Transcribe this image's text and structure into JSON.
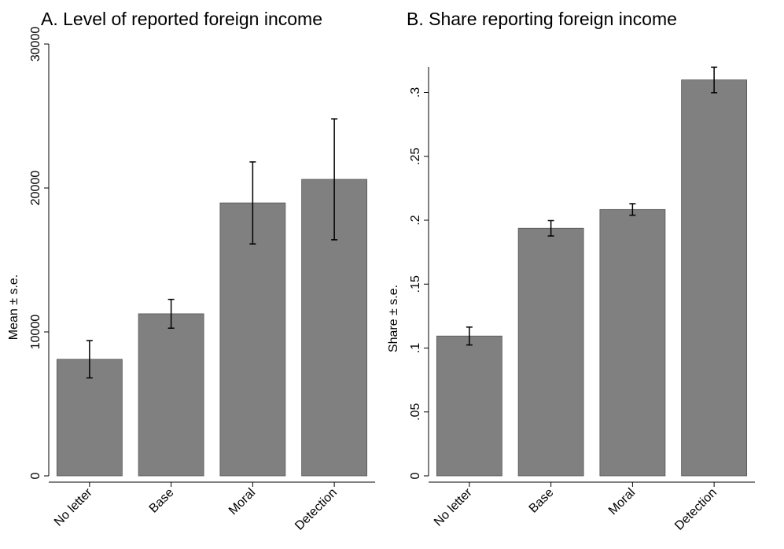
{
  "chart_data": [
    {
      "type": "bar",
      "title": "A. Level of reported foreign income",
      "ylabel": "Mean ± s.e.",
      "categories": [
        "No letter",
        "Base",
        "Moral",
        "Detection"
      ],
      "values": [
        8100,
        11260,
        18960,
        20600
      ],
      "errors": [
        1300,
        1000,
        2850,
        4200
      ],
      "color": "#808080",
      "ylim": [
        0,
        30000
      ],
      "yticks": [
        0,
        10000,
        20000,
        30000
      ]
    },
    {
      "type": "bar",
      "title": "B. Share reporting foreign income",
      "ylabel": "Share ± s.e.",
      "categories": [
        "No letter",
        "Base",
        "Moral",
        "Detection"
      ],
      "values": [
        0.1094,
        0.1937,
        0.2084,
        0.3098
      ],
      "errors": [
        0.007,
        0.006,
        0.0045,
        0.01
      ],
      "color": "#808080",
      "ylim": [
        0,
        0.32
      ],
      "yticks": [
        0,
        {
          "value": 0.05,
          "label": ".05"
        },
        {
          "value": 0.1,
          "label": ".1"
        },
        {
          "value": 0.15,
          "label": ".15"
        },
        {
          "value": 0.2,
          "label": ".2"
        },
        {
          "value": 0.25,
          "label": ".25"
        },
        {
          "value": 0.3,
          "label": ".3"
        }
      ]
    }
  ]
}
